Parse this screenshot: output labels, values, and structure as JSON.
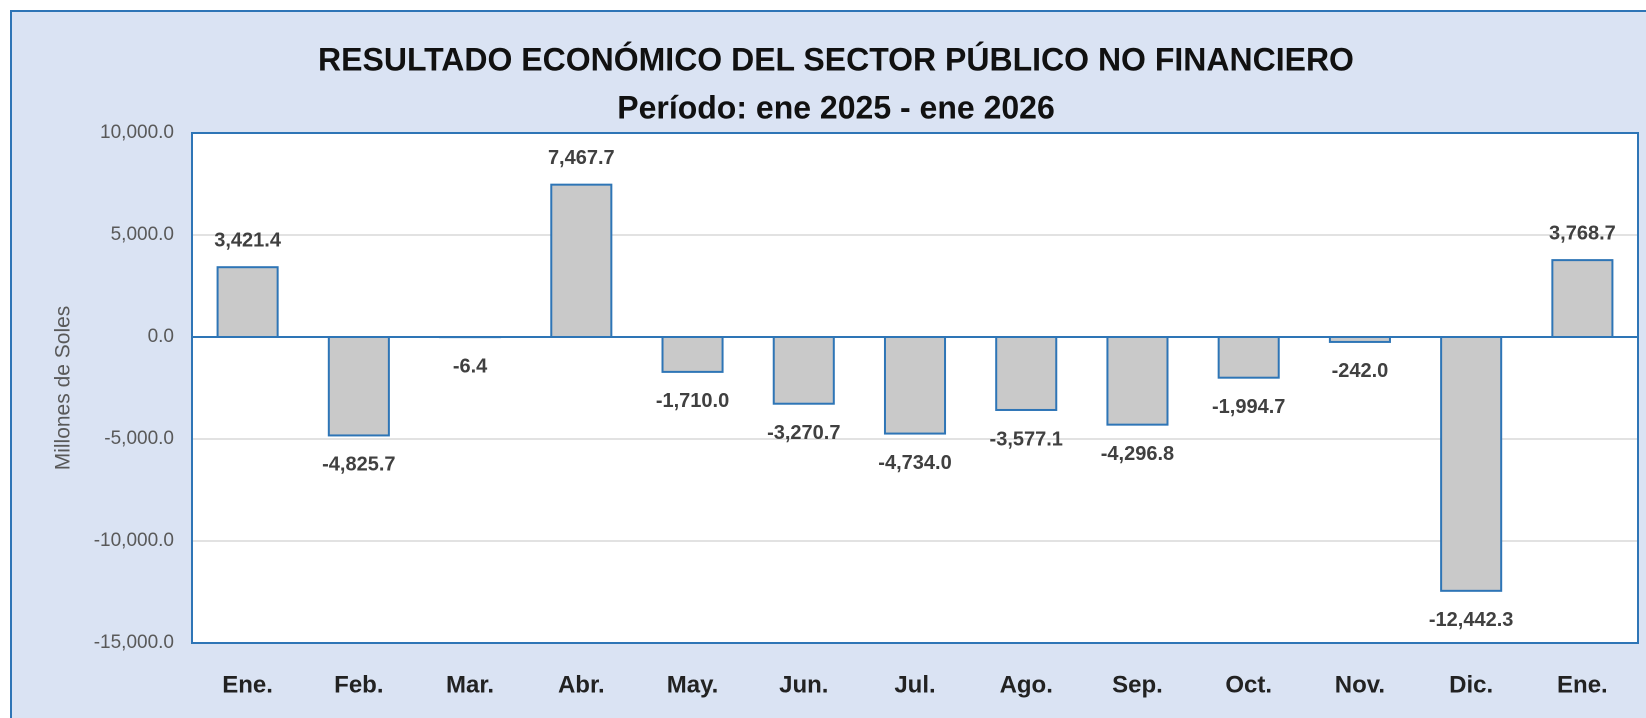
{
  "chart_data": {
    "type": "bar",
    "title": "RESULTADO ECONÓMICO DEL SECTOR PÚBLICO NO FINANCIERO",
    "subtitle": "Período: ene 2025 - ene 2026",
    "y_label": "Millones de Soles",
    "categories": [
      "Ene.",
      "Feb.",
      "Mar.",
      "Abr.",
      "May.",
      "Jun.",
      "Jul.",
      "Ago.",
      "Sep.",
      "Oct.",
      "Nov.",
      "Dic.",
      "Ene."
    ],
    "values": [
      3421.4,
      -4825.7,
      -6.4,
      7467.7,
      -1710.0,
      -3270.7,
      -4734.0,
      -3577.1,
      -4296.8,
      -1994.7,
      -242.0,
      -12442.3,
      3768.7
    ],
    "value_labels": [
      "3,421.4",
      "-4,825.7",
      "-6.4",
      "7,467.7",
      "-1,710.0",
      "-3,270.7",
      "-4,734.0",
      "-3,577.1",
      "-4,296.8",
      "-1,994.7",
      "-242.0",
      "-12,442.3",
      "3,768.7"
    ],
    "color": "#c9c9c9",
    "edge_color": "#2e75b6",
    "ylim": [
      -15000,
      10000
    ],
    "yticks": [
      {
        "value": 10000,
        "label": "10,000.0"
      },
      {
        "value": 5000,
        "label": "5,000.0"
      },
      {
        "value": 0,
        "label": "0.0"
      },
      {
        "value": -5000,
        "label": "-5,000.0"
      },
      {
        "value": -10000,
        "label": "-10,000.0"
      },
      {
        "value": -15000,
        "label": "-15,000.0"
      }
    ],
    "grid": true
  }
}
